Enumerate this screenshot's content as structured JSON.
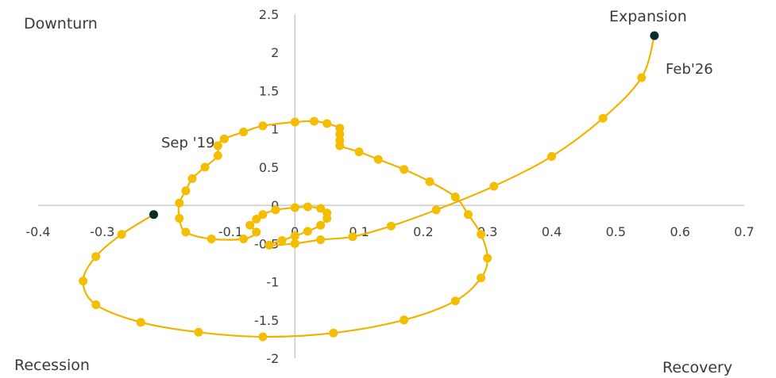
{
  "chart_data": {
    "type": "scatter",
    "xlim": [
      -0.4,
      0.7
    ],
    "ylim": [
      -2,
      2.5
    ],
    "x_ticks": [
      "-0.4",
      "-0.3",
      "-0.1",
      "0",
      "0.1",
      "0.2",
      "0.3",
      "0.4",
      "0.5",
      "0.6",
      "0.7"
    ],
    "x_tick_values": [
      -0.4,
      -0.3,
      -0.1,
      0,
      0.1,
      0.2,
      0.3,
      0.4,
      0.5,
      0.6,
      0.7
    ],
    "y_ticks": [
      "2.5",
      "2",
      "1.5",
      "1",
      "0.5",
      "0",
      "-0.5",
      "-1",
      "-1.5",
      "-2"
    ],
    "y_tick_values": [
      2.5,
      2,
      1.5,
      1,
      0.5,
      0,
      -0.5,
      -1,
      -1.5,
      -2
    ],
    "quadrants": {
      "top_left": "Downturn",
      "top_right": "Expansion",
      "bottom_left": "Recession",
      "bottom_right": "Recovery"
    },
    "annotations": [
      {
        "text": "Sep '19",
        "x": -0.13,
        "y": 0.8
      },
      {
        "text": "Feb'26",
        "x": 0.6,
        "y": 1.78
      }
    ],
    "grid": false,
    "colors": {
      "line": "#f0b400",
      "marker": "#f5bd00",
      "endpoint": "#0d2b2b",
      "axis": "#c0c0c0",
      "text": "#404040"
    },
    "series": [
      {
        "points": [
          [
            -0.22,
            -0.12
          ],
          [
            -0.27,
            -0.38
          ],
          [
            -0.31,
            -0.67
          ],
          [
            -0.33,
            -0.99
          ],
          [
            -0.31,
            -1.3
          ],
          [
            -0.24,
            -1.53
          ],
          [
            -0.15,
            -1.66
          ],
          [
            -0.05,
            -1.72
          ],
          [
            0.06,
            -1.67
          ],
          [
            0.17,
            -1.5
          ],
          [
            0.25,
            -1.25
          ],
          [
            0.29,
            -0.95
          ],
          [
            0.3,
            -0.69
          ],
          [
            0.29,
            -0.38
          ],
          [
            0.27,
            -0.12
          ],
          [
            0.25,
            0.11
          ],
          [
            0.21,
            0.31
          ],
          [
            0.17,
            0.47
          ],
          [
            0.13,
            0.6
          ],
          [
            0.1,
            0.7
          ],
          [
            0.07,
            0.78
          ],
          [
            0.07,
            0.85
          ],
          [
            0.07,
            0.93
          ],
          [
            0.07,
            1.01
          ],
          [
            0.05,
            1.07
          ],
          [
            0.03,
            1.1
          ],
          [
            0,
            1.09
          ],
          [
            -0.05,
            1.04
          ],
          [
            -0.08,
            0.96
          ],
          [
            -0.11,
            0.87
          ],
          [
            -0.12,
            0.78
          ],
          [
            -0.12,
            0.65
          ],
          [
            -0.14,
            0.5
          ],
          [
            -0.16,
            0.35
          ],
          [
            -0.17,
            0.19
          ],
          [
            -0.18,
            0.03
          ],
          [
            -0.18,
            -0.17
          ],
          [
            -0.17,
            -0.35
          ],
          [
            -0.13,
            -0.44
          ],
          [
            -0.08,
            -0.44
          ],
          [
            -0.06,
            -0.35
          ],
          [
            -0.07,
            -0.26
          ],
          [
            -0.06,
            -0.18
          ],
          [
            -0.05,
            -0.12
          ],
          [
            -0.03,
            -0.06
          ],
          [
            0,
            -0.03
          ],
          [
            0.02,
            -0.02
          ],
          [
            0.04,
            -0.04
          ],
          [
            0.05,
            -0.1
          ],
          [
            0.05,
            -0.17
          ],
          [
            0.04,
            -0.26
          ],
          [
            0.02,
            -0.34
          ],
          [
            0,
            -0.4
          ],
          [
            -0.02,
            -0.46
          ],
          [
            -0.04,
            -0.52
          ],
          [
            0.0,
            -0.5
          ],
          [
            0.04,
            -0.45
          ],
          [
            0.09,
            -0.41
          ],
          [
            0.15,
            -0.27
          ],
          [
            0.22,
            -0.06
          ],
          [
            0.31,
            0.25
          ],
          [
            0.4,
            0.64
          ],
          [
            0.48,
            1.14
          ],
          [
            0.54,
            1.67
          ],
          [
            0.56,
            2.22
          ]
        ]
      }
    ]
  }
}
